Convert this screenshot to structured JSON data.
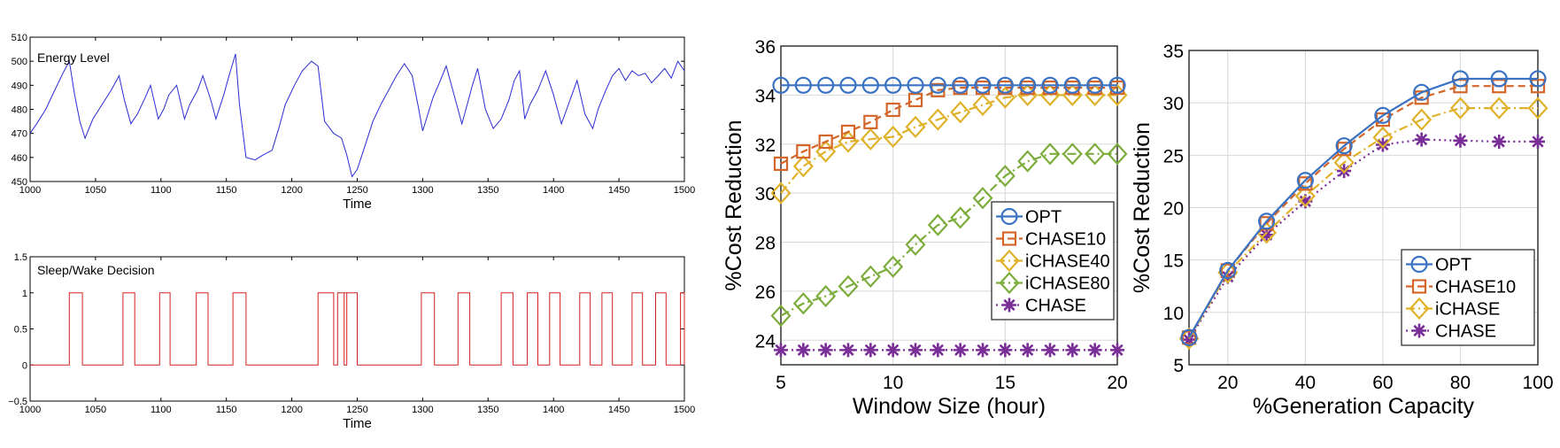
{
  "chart_data": [
    {
      "type": "line",
      "title": "Energy Level",
      "xlabel": "Time",
      "ylabel": "",
      "xlim": [
        1000,
        1500
      ],
      "ylim": [
        450,
        510
      ],
      "xticks": [
        1000,
        1050,
        1100,
        1150,
        1200,
        1250,
        1300,
        1350,
        1400,
        1450,
        1500
      ],
      "yticks": [
        450,
        460,
        470,
        480,
        490,
        500,
        510
      ],
      "color": "#2b2bd6",
      "x": [
        1000,
        1005,
        1012,
        1018,
        1025,
        1030,
        1034,
        1038,
        1042,
        1048,
        1055,
        1062,
        1068,
        1072,
        1077,
        1082,
        1088,
        1092,
        1098,
        1102,
        1106,
        1112,
        1118,
        1122,
        1128,
        1132,
        1138,
        1142,
        1148,
        1152,
        1157,
        1160,
        1165,
        1172,
        1178,
        1185,
        1190,
        1195,
        1202,
        1208,
        1215,
        1220,
        1225,
        1232,
        1238,
        1242,
        1246,
        1250,
        1256,
        1262,
        1268,
        1274,
        1280,
        1286,
        1292,
        1297,
        1300,
        1304,
        1308,
        1312,
        1318,
        1324,
        1330,
        1334,
        1338,
        1342,
        1348,
        1354,
        1360,
        1366,
        1370,
        1374,
        1378,
        1382,
        1388,
        1394,
        1400,
        1406,
        1410,
        1414,
        1418,
        1424,
        1430,
        1434,
        1440,
        1445,
        1450,
        1455,
        1460,
        1465,
        1470,
        1475,
        1480,
        1485,
        1490,
        1495,
        1500
      ],
      "y": [
        470,
        474,
        480,
        487,
        495,
        500,
        486,
        475,
        468,
        476,
        482,
        488,
        494,
        484,
        474,
        478,
        485,
        490,
        476,
        480,
        486,
        490,
        476,
        482,
        488,
        494,
        484,
        476,
        486,
        494,
        503,
        482,
        460,
        459,
        461,
        463,
        472,
        482,
        490,
        496,
        500,
        498,
        475,
        470,
        468,
        461,
        452,
        455,
        465,
        475,
        482,
        488,
        494,
        499,
        494,
        480,
        471,
        478,
        485,
        490,
        498,
        486,
        474,
        482,
        490,
        497,
        480,
        472,
        476,
        484,
        492,
        496,
        476,
        482,
        488,
        496,
        486,
        474,
        480,
        486,
        492,
        478,
        472,
        480,
        488,
        494,
        497,
        492,
        496,
        494,
        495,
        491,
        494,
        497,
        493,
        500,
        496
      ]
    },
    {
      "type": "line",
      "title": "Sleep/Wake Decision",
      "xlabel": "Time",
      "ylabel": "",
      "xlim": [
        1000,
        1500
      ],
      "ylim": [
        -0.5,
        1.5
      ],
      "xticks": [
        1000,
        1050,
        1100,
        1150,
        1200,
        1250,
        1300,
        1350,
        1400,
        1450,
        1500
      ],
      "yticks": [
        -0.5,
        0,
        0.5,
        1,
        1.5
      ],
      "color": "#d42020",
      "on_intervals": [
        [
          1030,
          1040
        ],
        [
          1071,
          1080
        ],
        [
          1099,
          1107
        ],
        [
          1127,
          1136
        ],
        [
          1155,
          1165
        ],
        [
          1220,
          1232
        ],
        [
          1235,
          1242
        ],
        [
          1240,
          1250
        ],
        [
          1299,
          1309
        ],
        [
          1327,
          1336
        ],
        [
          1360,
          1369
        ],
        [
          1380,
          1388
        ],
        [
          1397,
          1405
        ],
        [
          1420,
          1428
        ],
        [
          1437,
          1445
        ],
        [
          1460,
          1468
        ],
        [
          1478,
          1486
        ],
        [
          1497,
          1500
        ]
      ]
    },
    {
      "type": "line",
      "title": "",
      "xlabel": "Window Size (hour)",
      "ylabel": "%Cost Reduction",
      "xlim": [
        5,
        20
      ],
      "ylim": [
        23,
        36
      ],
      "xticks": [
        5,
        10,
        15,
        20
      ],
      "yticks": [
        24,
        26,
        28,
        30,
        32,
        34,
        36
      ],
      "grid": true,
      "legend": "bottom-right",
      "x": [
        5,
        6,
        7,
        8,
        9,
        10,
        11,
        12,
        13,
        14,
        15,
        16,
        17,
        18,
        19,
        20
      ],
      "series": [
        {
          "name": "OPT",
          "marker": "circle",
          "color": "#3a72c4",
          "dash": "solid",
          "values": [
            34.4,
            34.4,
            34.4,
            34.4,
            34.4,
            34.4,
            34.4,
            34.4,
            34.4,
            34.4,
            34.4,
            34.4,
            34.4,
            34.4,
            34.4,
            34.4
          ]
        },
        {
          "name": "CHASE10",
          "marker": "square",
          "color": "#d4662a",
          "dash": "dashed",
          "values": [
            31.2,
            31.7,
            32.1,
            32.5,
            32.9,
            33.4,
            33.8,
            34.2,
            34.3,
            34.3,
            34.3,
            34.3,
            34.3,
            34.3,
            34.3,
            34.3
          ]
        },
        {
          "name": "iCHASE40",
          "marker": "diamond",
          "color": "#e0b22a",
          "dash": "dashdot",
          "values": [
            30.0,
            31.1,
            31.7,
            32.1,
            32.2,
            32.3,
            32.7,
            33.0,
            33.3,
            33.6,
            33.9,
            34.0,
            34.0,
            34.0,
            34.0,
            34.0
          ]
        },
        {
          "name": "iCHASE80",
          "marker": "diamond",
          "color": "#7cad3c",
          "dash": "dashdot",
          "values": [
            25.0,
            25.5,
            25.8,
            26.2,
            26.6,
            27.0,
            27.9,
            28.7,
            29.0,
            29.8,
            30.7,
            31.3,
            31.6,
            31.6,
            31.6,
            31.6
          ]
        },
        {
          "name": "CHASE",
          "marker": "asterisk",
          "color": "#7a2f98",
          "dash": "dotted",
          "values": [
            23.6,
            23.6,
            23.6,
            23.6,
            23.6,
            23.6,
            23.6,
            23.6,
            23.6,
            23.6,
            23.6,
            23.6,
            23.6,
            23.6,
            23.6,
            23.6
          ]
        }
      ]
    },
    {
      "type": "line",
      "title": "",
      "xlabel": "%Generation Capacity",
      "ylabel": "%Cost Reduction",
      "xlim": [
        10,
        100
      ],
      "ylim": [
        5,
        35
      ],
      "xticks": [
        20,
        40,
        60,
        80,
        100
      ],
      "yticks": [
        5,
        10,
        15,
        20,
        25,
        30,
        35
      ],
      "grid": true,
      "legend": "bottom-right",
      "x": [
        10,
        20,
        30,
        40,
        50,
        60,
        70,
        80,
        90,
        100
      ],
      "series": [
        {
          "name": "OPT",
          "marker": "circle",
          "color": "#3a72c4",
          "dash": "solid",
          "values": [
            7.6,
            14.0,
            18.7,
            22.6,
            25.9,
            28.8,
            31.0,
            32.3,
            32.3,
            32.3
          ]
        },
        {
          "name": "CHASE10",
          "marker": "square",
          "color": "#d4662a",
          "dash": "dashed",
          "values": [
            7.6,
            14.0,
            18.5,
            22.3,
            25.6,
            28.4,
            30.5,
            31.6,
            31.6,
            31.6
          ]
        },
        {
          "name": "iCHASE",
          "marker": "diamond",
          "color": "#e0b22a",
          "dash": "dashdot",
          "values": [
            7.5,
            13.8,
            17.6,
            21.1,
            24.3,
            26.7,
            28.4,
            29.5,
            29.5,
            29.5
          ]
        },
        {
          "name": "CHASE",
          "marker": "asterisk",
          "color": "#7a2f98",
          "dash": "dotted",
          "values": [
            7.4,
            13.4,
            17.4,
            20.6,
            23.5,
            26.0,
            26.5,
            26.4,
            26.3,
            26.3
          ]
        }
      ]
    }
  ]
}
